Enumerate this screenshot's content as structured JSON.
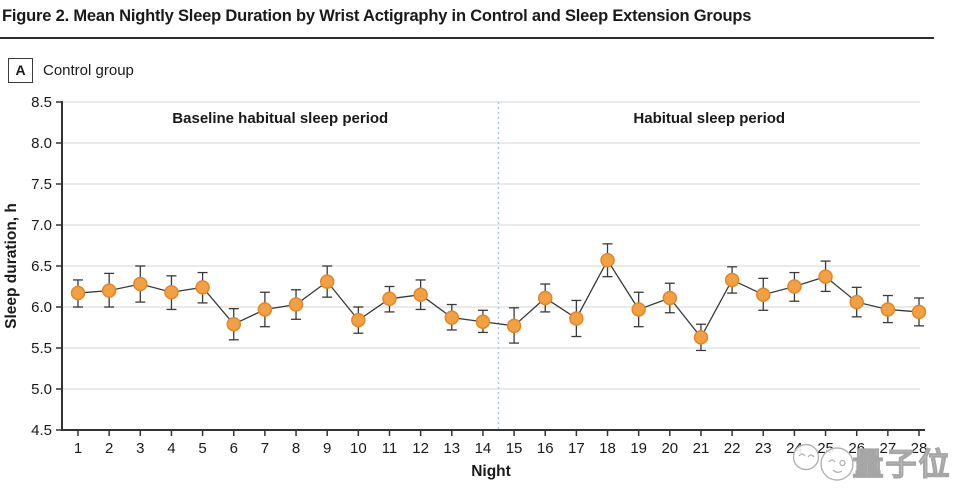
{
  "figure": {
    "title": "Figure 2. Mean Nightly Sleep Duration by Wrist Actigraphy in Control and Sleep Extension Groups",
    "panel_label": "A",
    "panel_title": "Control group"
  },
  "chart_data": {
    "type": "line",
    "title": "",
    "xlabel": "Night",
    "ylabel": "Sleep duration, h",
    "ylim": [
      4.5,
      8.5
    ],
    "ytick_step": 0.5,
    "ytick_labels": [
      "4.5",
      "5.0",
      "5.5",
      "6.0",
      "6.5",
      "7.0",
      "7.5",
      "8.0",
      "8.5"
    ],
    "x": [
      1,
      2,
      3,
      4,
      5,
      6,
      7,
      8,
      9,
      10,
      11,
      12,
      13,
      14,
      15,
      16,
      17,
      18,
      19,
      20,
      21,
      22,
      23,
      24,
      25,
      26,
      27,
      28
    ],
    "grid": true,
    "legend_position": "none",
    "series": [
      {
        "name": "Control group",
        "values": [
          6.17,
          6.2,
          6.28,
          6.18,
          6.24,
          5.79,
          5.97,
          6.03,
          6.31,
          5.84,
          6.1,
          6.15,
          5.87,
          5.82,
          5.77,
          6.11,
          5.86,
          6.57,
          5.97,
          6.11,
          5.63,
          6.33,
          6.15,
          6.25,
          6.37,
          6.06,
          5.97,
          5.94
        ],
        "error_low": [
          6.0,
          6.0,
          6.06,
          5.97,
          6.05,
          5.6,
          5.76,
          5.85,
          6.12,
          5.68,
          5.94,
          5.97,
          5.72,
          5.69,
          5.56,
          5.94,
          5.64,
          6.37,
          5.76,
          5.93,
          5.47,
          6.17,
          5.96,
          6.07,
          6.19,
          5.88,
          5.81,
          5.77
        ],
        "error_high": [
          6.33,
          6.41,
          6.5,
          6.38,
          6.42,
          5.98,
          6.18,
          6.21,
          6.5,
          6.0,
          6.25,
          6.33,
          6.03,
          5.96,
          5.99,
          6.28,
          6.08,
          6.77,
          6.18,
          6.29,
          5.79,
          6.49,
          6.35,
          6.42,
          6.56,
          6.24,
          6.14,
          6.11
        ]
      }
    ],
    "annotations": {
      "left_region_label": "Baseline habitual sleep period",
      "right_region_label": "Habitual sleep period",
      "divider_x": 14.5
    },
    "colors": {
      "marker": "#F2A044",
      "marker_edge": "#E2872B",
      "line": "#3a3a3a",
      "error_bar": "#3a3a3a",
      "grid": "#E4E4E4",
      "axis": "#333333",
      "divider": "#9FCFDB",
      "text": "#1a1a1a"
    }
  },
  "watermark": {
    "text": "量子位",
    "mascot": "qbitai-mascot"
  }
}
